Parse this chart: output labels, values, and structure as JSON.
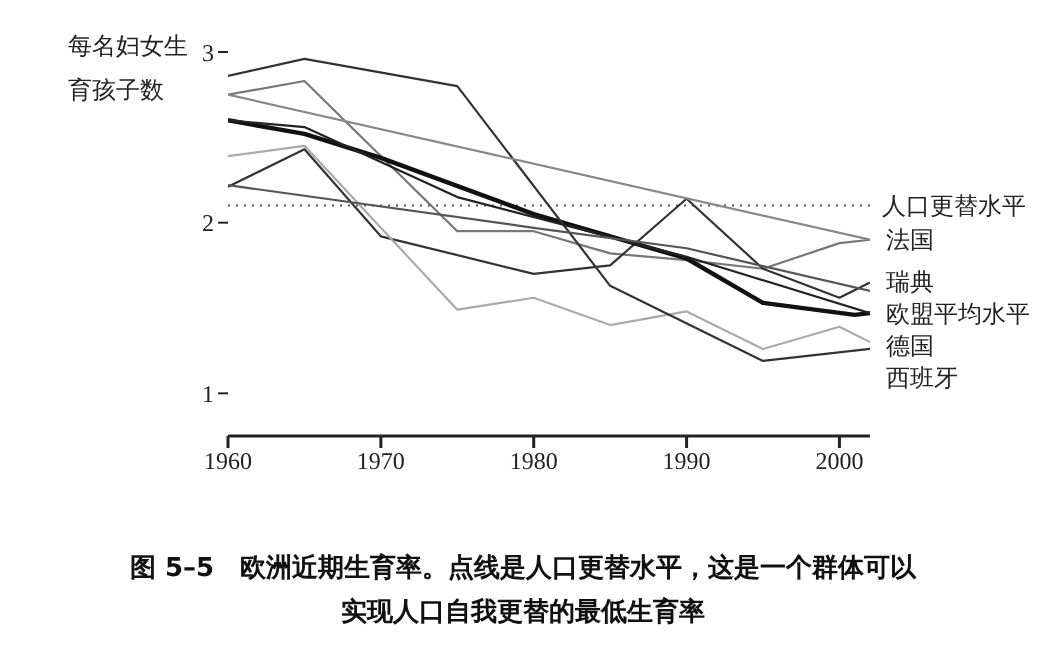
{
  "chart_data": {
    "type": "line",
    "ylabel": "每名妇女生育孩子数",
    "xlim": [
      1960,
      2002
    ],
    "xticks": [
      1960,
      1970,
      1980,
      1990,
      2000
    ],
    "ylim": [
      0.75,
      3
    ],
    "yticks": [
      1,
      2,
      3
    ],
    "grid": false,
    "legend": false,
    "marker": "none",
    "line_style": "solid",
    "ref_lines": [
      {
        "axis": "y",
        "value": 2.1,
        "label": "人口更替水平",
        "line_style": "dotted",
        "color": "#555555"
      }
    ],
    "series": [
      {
        "name": "法国",
        "color": "#777777",
        "x": [
          1960,
          1965,
          1975,
          1980,
          1985,
          1990,
          1995,
          2000,
          2002
        ],
        "values": [
          2.75,
          2.83,
          1.95,
          1.95,
          1.82,
          1.78,
          1.73,
          1.88,
          1.9
        ]
      },
      {
        "name": "瑞典",
        "color": "#333333",
        "x": [
          1960,
          1965,
          1970,
          1980,
          1985,
          1990,
          1995,
          2000,
          2002
        ],
        "values": [
          2.21,
          2.43,
          1.92,
          1.7,
          1.75,
          2.14,
          1.73,
          1.56,
          1.65
        ]
      },
      {
        "name": "欧盟平均水平",
        "color": "#111111",
        "x": [
          1960,
          1965,
          1970,
          1980,
          1990,
          1995,
          2001,
          2002
        ],
        "values": [
          2.6,
          2.52,
          2.38,
          2.05,
          1.79,
          1.53,
          1.46,
          1.47
        ]
      },
      {
        "name": "德国",
        "color": "#aaaaaa",
        "x": [
          1960,
          1965,
          1975,
          1980,
          1985,
          1990,
          1995,
          2000,
          2002
        ],
        "values": [
          2.39,
          2.45,
          1.49,
          1.56,
          1.4,
          1.48,
          1.26,
          1.39,
          1.3
        ]
      },
      {
        "name": "西班牙",
        "color": "#333333",
        "x": [
          1960,
          1965,
          1975,
          1985,
          1995,
          2002
        ],
        "values": [
          2.86,
          2.96,
          2.8,
          1.63,
          1.19,
          1.26
        ]
      },
      {
        "color": "#888888",
        "x": [
          1960,
          2002
        ],
        "values": [
          2.75,
          1.9
        ]
      },
      {
        "color": "#222222",
        "x": [
          1960,
          1965,
          1975,
          1990,
          2002
        ],
        "values": [
          2.6,
          2.56,
          2.15,
          1.8,
          1.47
        ]
      },
      {
        "color": "#555555",
        "x": [
          1960,
          1980,
          1990,
          2002
        ],
        "values": [
          2.22,
          1.97,
          1.85,
          1.6
        ]
      }
    ],
    "annotations": [
      "图 5–5　欧洲近期生育率。点线是人口更替水平，这是一个群体可以实现人口自我更替的最低生育率"
    ]
  }
}
